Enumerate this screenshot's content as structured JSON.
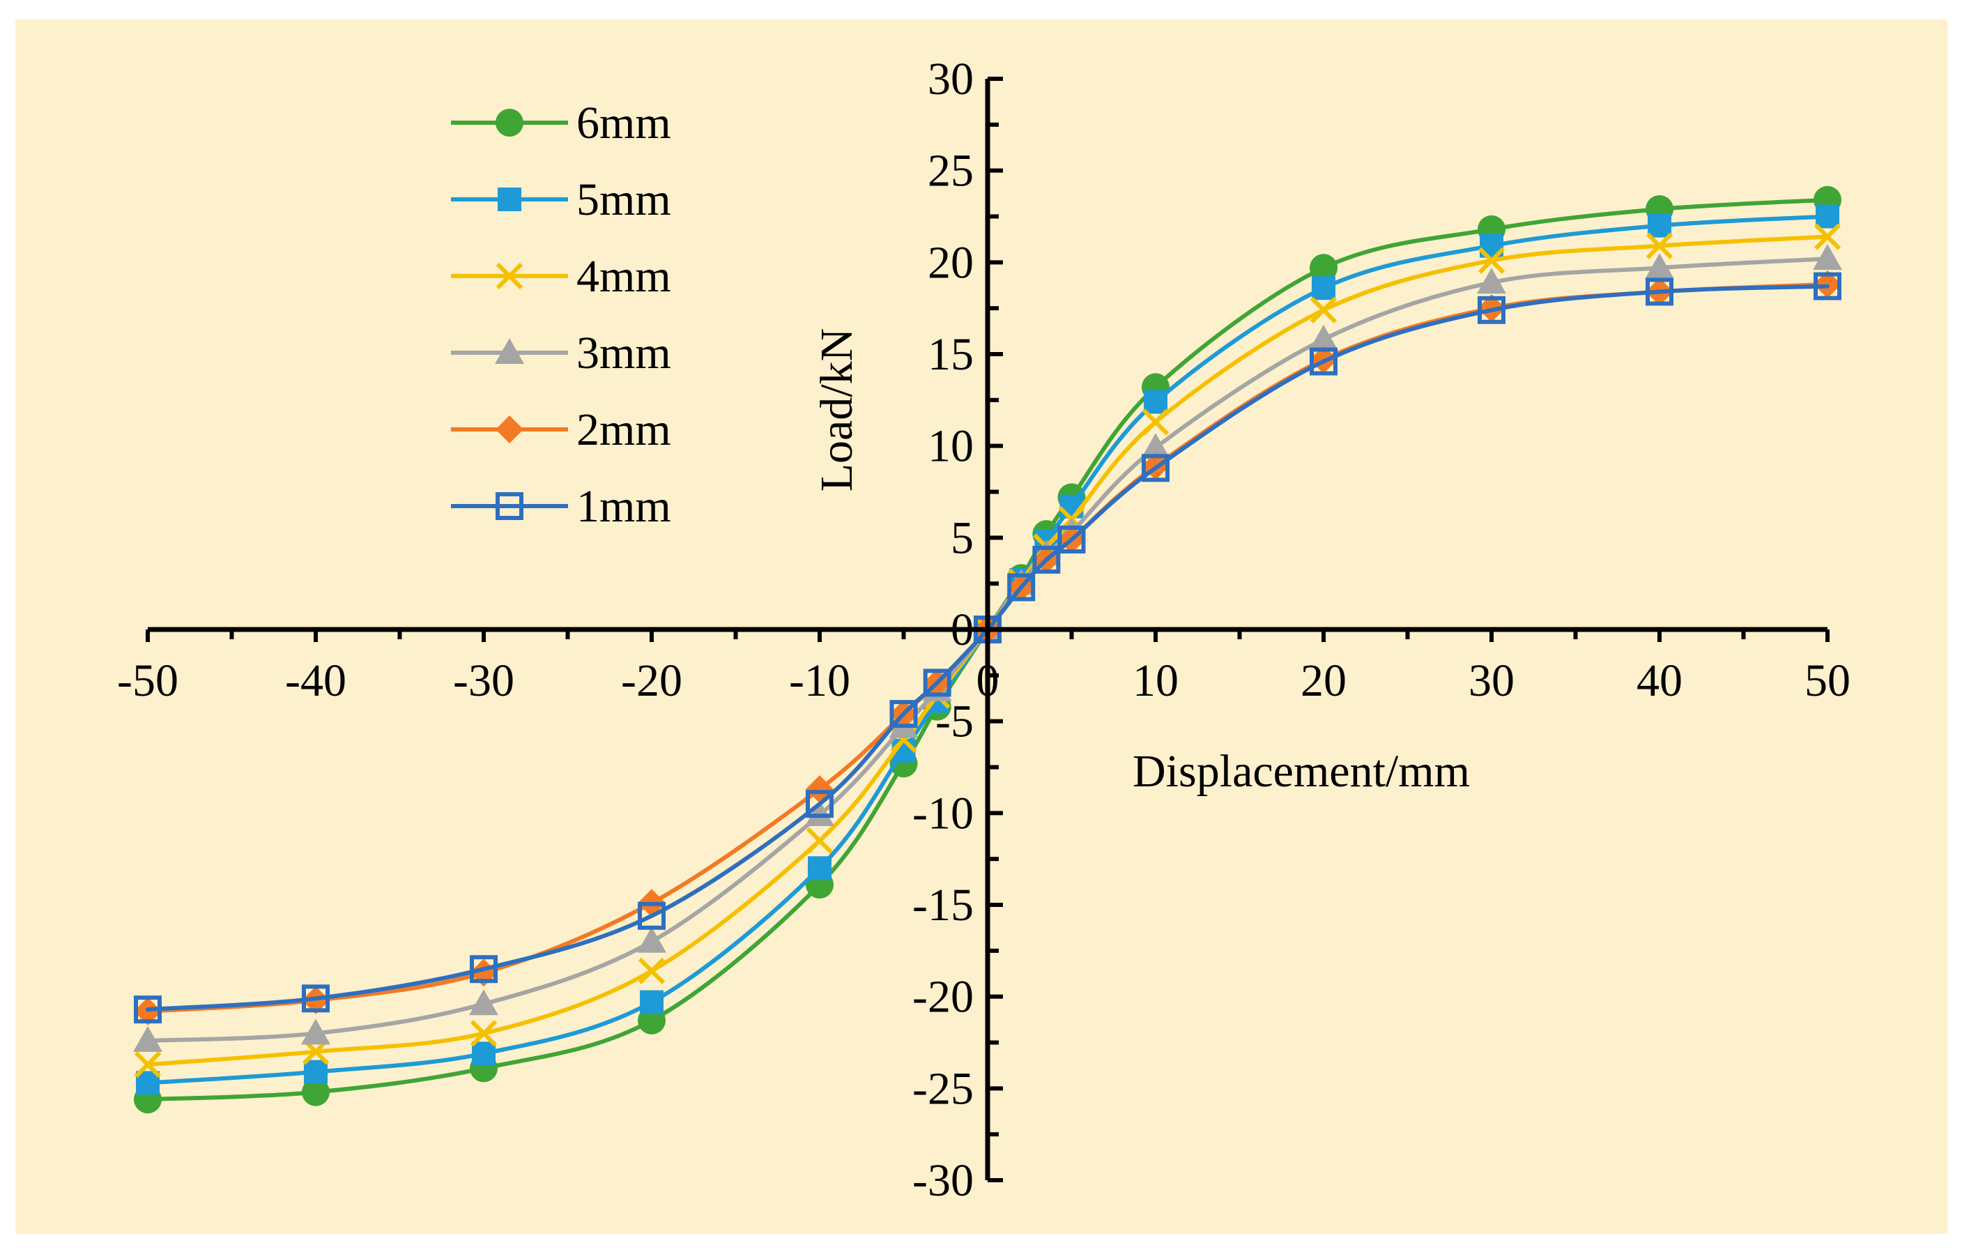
{
  "chart_data": {
    "type": "line",
    "title": "",
    "xlabel": "Displacement/mm",
    "ylabel": "Load/kN",
    "xlim": [
      -50,
      50
    ],
    "ylim": [
      -30,
      30
    ],
    "x_ticks": [
      "-50",
      "-40",
      "-30",
      "-20",
      "-10",
      "0",
      "10",
      "20",
      "30",
      "40",
      "50"
    ],
    "y_ticks": [
      "30",
      "25",
      "20",
      "15",
      "10",
      "5",
      "0",
      "-5",
      "-10",
      "-15",
      "-20",
      "-25",
      "-30"
    ],
    "legend_position": "top-left",
    "grid": false,
    "x": [
      -50,
      -40,
      -30,
      -20,
      -10,
      -5,
      -3,
      0,
      2,
      3.5,
      5,
      10,
      20,
      30,
      40,
      50
    ],
    "series": [
      {
        "name": "6mm",
        "color": "#3fa535",
        "marker": "circle",
        "values": [
          -25.6,
          -25.2,
          -23.9,
          -21.3,
          -13.9,
          -7.3,
          -4.2,
          0,
          2.8,
          5.2,
          7.2,
          13.2,
          19.7,
          21.8,
          22.9,
          23.4
        ]
      },
      {
        "name": "5mm",
        "color": "#1e9ad6",
        "marker": "square",
        "values": [
          -24.7,
          -24.1,
          -23.1,
          -20.3,
          -13.0,
          -6.6,
          -3.9,
          0,
          2.7,
          4.8,
          6.7,
          12.4,
          18.6,
          20.9,
          22.0,
          22.5
        ]
      },
      {
        "name": "4mm",
        "color": "#f5c000",
        "marker": "x",
        "values": [
          -23.7,
          -23.0,
          -22.0,
          -18.6,
          -11.5,
          -6.0,
          -3.6,
          0,
          2.6,
          4.5,
          6.0,
          11.3,
          17.4,
          20.1,
          20.9,
          21.4
        ]
      },
      {
        "name": "3mm",
        "color": "#a5a5a5",
        "marker": "triangle",
        "values": [
          -22.4,
          -22.0,
          -20.4,
          -17.0,
          -10.1,
          -5.3,
          -3.3,
          0,
          2.5,
          4.1,
          5.3,
          9.9,
          15.8,
          18.9,
          19.7,
          20.2
        ]
      },
      {
        "name": "2mm",
        "color": "#f27a24",
        "marker": "diamond",
        "values": [
          -20.8,
          -20.2,
          -18.7,
          -14.9,
          -8.7,
          -4.6,
          -2.9,
          0,
          2.3,
          3.8,
          4.9,
          8.9,
          14.7,
          17.5,
          18.4,
          18.8
        ]
      },
      {
        "name": "1mm",
        "color": "#2e6fbf",
        "marker": "open-square",
        "values": [
          -20.7,
          -20.1,
          -18.5,
          -15.6,
          -9.5,
          -4.6,
          -2.9,
          0,
          2.3,
          3.8,
          4.9,
          8.8,
          14.6,
          17.4,
          18.4,
          18.7
        ]
      }
    ]
  }
}
